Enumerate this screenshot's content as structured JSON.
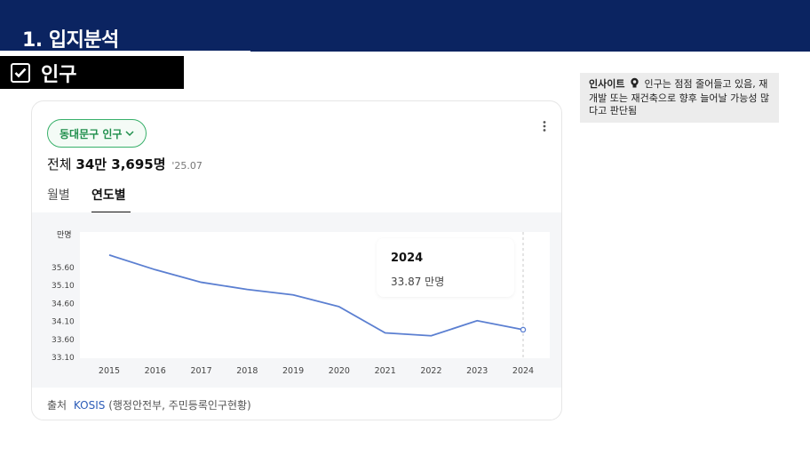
{
  "header": {
    "title": "1. 입지분석"
  },
  "section": {
    "label": "인구"
  },
  "insight": {
    "label": "인사이트",
    "text": "인구는 점점 줄어들고 있음, 재개발 또는 재건축으로 향후 늘어날 가능성 많다고 판단됨"
  },
  "card": {
    "pill_label": "동대문구 인구",
    "total_prefix": "전체",
    "total_value": "34만 3,695명",
    "total_date": "'25.07",
    "tabs": [
      "월별",
      "연도별"
    ],
    "tooltip": {
      "year": "2024",
      "value": "33.87 만명"
    },
    "source_prefix": "출처",
    "source_link": "KOSIS",
    "source_detail": "(행정안전부, 주민등록인구현황)"
  },
  "chart_data": {
    "type": "line",
    "ylabel": "만명",
    "x": [
      "2015",
      "2016",
      "2017",
      "2018",
      "2019",
      "2020",
      "2021",
      "2022",
      "2023",
      "2024"
    ],
    "y_ticks": [
      "35.60",
      "35.10",
      "34.60",
      "34.10",
      "33.60",
      "33.10"
    ],
    "ylim": [
      33.1,
      35.6
    ],
    "series": [
      {
        "values": [
          35.95,
          35.54,
          35.19,
          34.99,
          34.84,
          34.51,
          33.78,
          33.7,
          34.12,
          33.87
        ]
      }
    ],
    "highlighted_index": 9,
    "grid": false,
    "line_color": "#5b7fd1"
  }
}
